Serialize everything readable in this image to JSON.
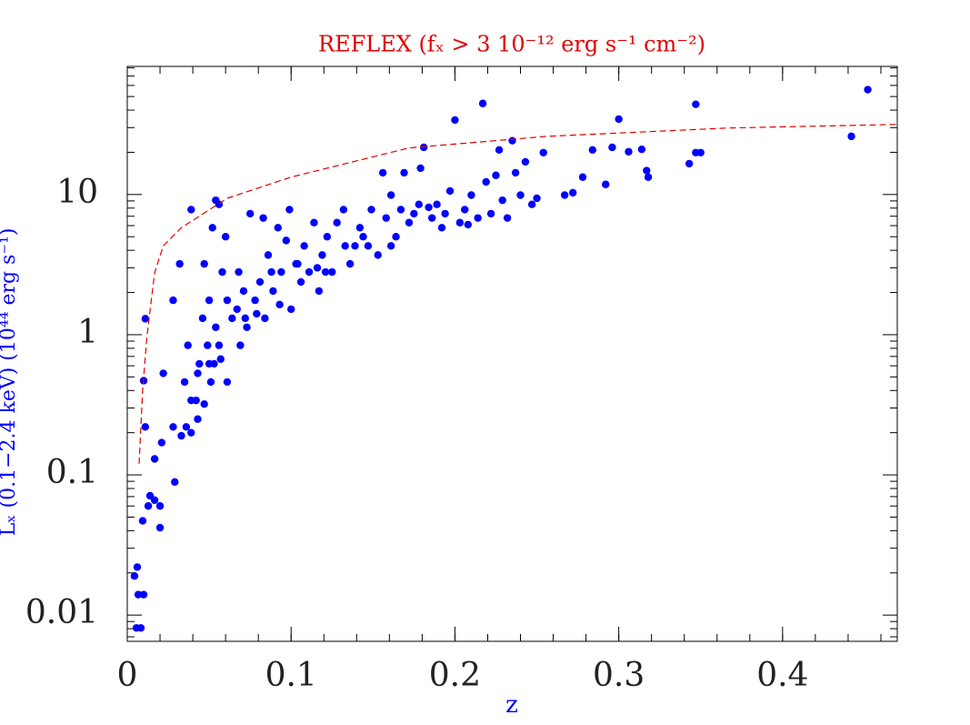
{
  "chart_data": {
    "type": "scatter",
    "title": "REFLEX (fₓ > 3 10⁻¹² erg s⁻¹ cm⁻²)",
    "xlabel": "z",
    "ylabel": "Lₓ (0.1−2.4 keV) (10⁴⁴ erg s⁻¹)",
    "xlim": [
      0,
      0.47
    ],
    "ylim": [
      0.0065,
      82
    ],
    "xticks": [
      0,
      0.1,
      0.2,
      0.3,
      0.4
    ],
    "yticks": [
      0.01,
      0.1,
      1,
      10
    ],
    "log_y": true,
    "series": [
      {
        "type": "scatter",
        "color": "#0000ff",
        "x": [
          0.0056,
          0.0044,
          0.0061,
          0.0067,
          0.01,
          0.0083,
          0.0094,
          0.0128,
          0.0139,
          0.0167,
          0.02,
          0.02,
          0.011,
          0.01,
          0.011,
          0.0167,
          0.021,
          0.022,
          0.028,
          0.029,
          0.028,
          0.032,
          0.033,
          0.036,
          0.039,
          0.035,
          0.037,
          0.039,
          0.042,
          0.043,
          0.046,
          0.047,
          0.049,
          0.05,
          0.051,
          0.052,
          0.054,
          0.056,
          0.058,
          0.06,
          0.047,
          0.05,
          0.054,
          0.057,
          0.061,
          0.064,
          0.068,
          0.069,
          0.072,
          0.075,
          0.078,
          0.081,
          0.083,
          0.084,
          0.086,
          0.089,
          0.092,
          0.094,
          0.097,
          0.099,
          0.1,
          0.103,
          0.106,
          0.108,
          0.111,
          0.114,
          0.117,
          0.119,
          0.122,
          0.125,
          0.128,
          0.132,
          0.136,
          0.139,
          0.142,
          0.144,
          0.149,
          0.153,
          0.156,
          0.158,
          0.161,
          0.164,
          0.167,
          0.169,
          0.175,
          0.178,
          0.179,
          0.181,
          0.186,
          0.189,
          0.192,
          0.194,
          0.197,
          0.2,
          0.203,
          0.206,
          0.21,
          0.214,
          0.217,
          0.219,
          0.222,
          0.225,
          0.227,
          0.229,
          0.232,
          0.235,
          0.237,
          0.24,
          0.243,
          0.247,
          0.25,
          0.254,
          0.267,
          0.272,
          0.278,
          0.284,
          0.292,
          0.296,
          0.3,
          0.306,
          0.314,
          0.317,
          0.318,
          0.343,
          0.347,
          0.347,
          0.35,
          0.442,
          0.452,
          0.039,
          0.043,
          0.044,
          0.053,
          0.056,
          0.061,
          0.067,
          0.071,
          0.073,
          0.079,
          0.088,
          0.093,
          0.104,
          0.116,
          0.121,
          0.133,
          0.147,
          0.161,
          0.172,
          0.184,
          0.208
        ],
        "values": [
          0.0081,
          0.019,
          0.022,
          0.014,
          0.014,
          0.0081,
          0.047,
          0.06,
          0.071,
          0.066,
          0.042,
          0.06,
          0.22,
          0.47,
          1.3,
          0.13,
          0.17,
          0.53,
          0.22,
          0.089,
          1.76,
          3.2,
          0.19,
          0.22,
          0.2,
          0.46,
          0.84,
          7.8,
          0.34,
          0.53,
          1.31,
          3.2,
          0.84,
          1.76,
          0.46,
          5.8,
          9.1,
          8.5,
          2.8,
          5.0,
          0.32,
          0.62,
          1.13,
          0.67,
          0.46,
          1.31,
          2.8,
          0.84,
          1.31,
          7.3,
          1.76,
          2.38,
          6.8,
          1.31,
          3.7,
          2.05,
          5.8,
          2.8,
          4.7,
          7.8,
          1.52,
          3.2,
          2.38,
          4.3,
          2.8,
          6.3,
          2.05,
          3.7,
          5.0,
          2.8,
          6.3,
          7.8,
          3.2,
          4.3,
          5.8,
          5.0,
          7.8,
          3.7,
          14.3,
          6.8,
          9.9,
          5.0,
          7.8,
          14.3,
          7.3,
          8.5,
          15.4,
          21.7,
          6.8,
          8.5,
          5.8,
          7.3,
          10.6,
          34,
          6.3,
          7.8,
          9.9,
          6.8,
          44.6,
          12.3,
          7.3,
          13.7,
          20.8,
          9.1,
          6.8,
          24.2,
          14.3,
          9.9,
          17.1,
          8.5,
          9.4,
          19.9,
          9.9,
          10.3,
          13.3,
          20.8,
          11.8,
          21.7,
          34.5,
          20.2,
          21,
          14.8,
          13.3,
          16.6,
          19.9,
          44,
          19.9,
          26,
          56,
          0.34,
          0.25,
          0.62,
          0.62,
          0.84,
          1.76,
          1.52,
          2.05,
          1.13,
          1.41,
          2.8,
          1.64,
          3.2,
          3.0,
          2.8,
          4.3,
          4.3,
          4.3,
          6.3,
          8.1,
          6.1
        ]
      },
      {
        "type": "line",
        "color": "#e00000",
        "dash": true,
        "x": [
          0.0072,
          0.0094,
          0.012,
          0.0167,
          0.022,
          0.033,
          0.061,
          0.1,
          0.172,
          0.256,
          0.367,
          0.47
        ],
        "values": [
          0.12,
          0.4,
          0.97,
          2.77,
          4.3,
          5.8,
          9.4,
          13.3,
          21.5,
          26.0,
          29.8,
          31.6
        ]
      }
    ]
  }
}
